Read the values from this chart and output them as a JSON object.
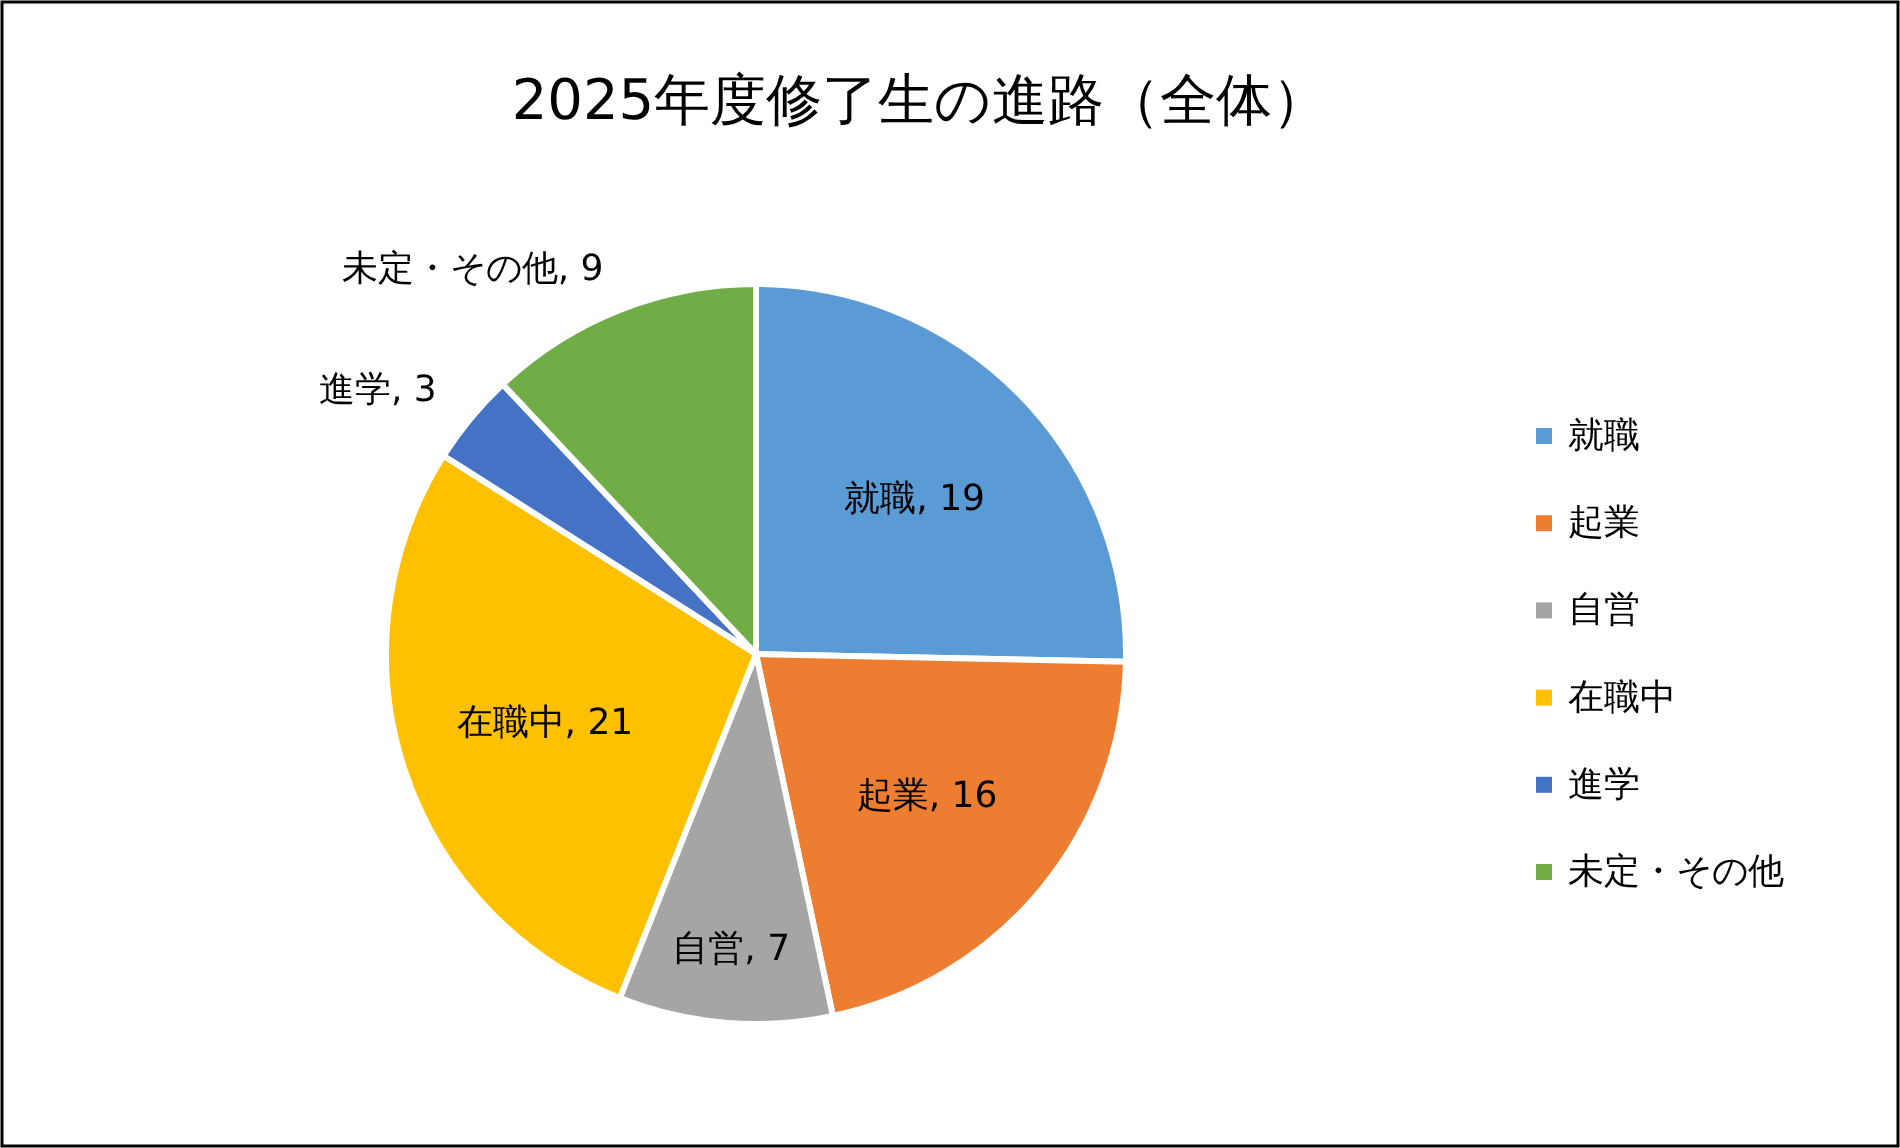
{
  "chart_data": {
    "type": "pie",
    "title": "2025年度修了生の進路（全体）",
    "categories": [
      "就職",
      "起業",
      "自営",
      "在職中",
      "進学",
      "未定・その他"
    ],
    "values": [
      19,
      16,
      7,
      21,
      3,
      9
    ],
    "colors": [
      "#5b9bd5",
      "#ed7d31",
      "#a5a5a5",
      "#ffc000",
      "#4472c4",
      "#70ad47"
    ],
    "value_labels": [
      "就職, 19",
      "起業, 16",
      "自営, 7",
      "在職中, 21",
      "進学, 3",
      "未定・その他, 9"
    ],
    "legend": "right"
  }
}
